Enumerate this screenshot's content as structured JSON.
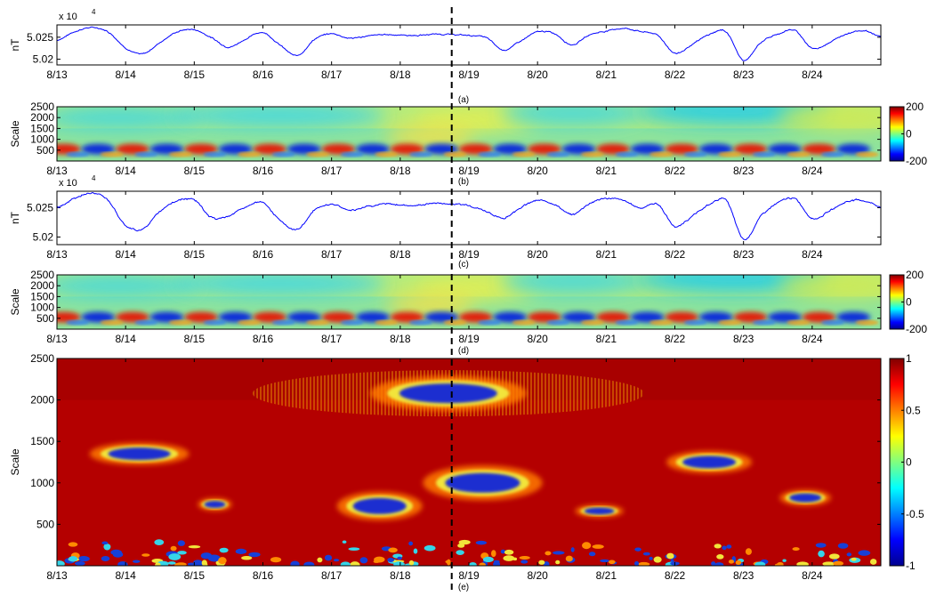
{
  "figure": {
    "dashed_line_date": "8/18 18:00"
  },
  "chart_data": [
    {
      "id": "a",
      "type": "line",
      "panel_label": "(a)",
      "ylabel": "nT",
      "y_multiplier": "x 10",
      "y_exponent": "4",
      "yticks": [
        "5.02",
        "5.025"
      ],
      "ylim": [
        5.0187,
        5.0278
      ],
      "xticks": [
        "8/13",
        "8/14",
        "8/15",
        "8/16",
        "8/17",
        "8/18",
        "8/19",
        "8/20",
        "8/21",
        "8/22",
        "8/23",
        "8/24"
      ],
      "series": [
        {
          "color": "#0000ff",
          "x": [
            "8/13 00:00",
            "8/13 06:00",
            "8/13 12:00",
            "8/13 18:00",
            "8/14 00:00",
            "8/14 06:00",
            "8/14 12:00",
            "8/14 18:00",
            "8/15 00:00",
            "8/15 06:00",
            "8/15 12:00",
            "8/15 18:00",
            "8/16 00:00",
            "8/16 06:00",
            "8/16 12:00",
            "8/16 18:00",
            "8/17 00:00",
            "8/17 06:00",
            "8/17 12:00",
            "8/17 18:00",
            "8/18 00:00",
            "8/18 06:00",
            "8/18 12:00",
            "8/18 18:00",
            "8/19 00:00",
            "8/19 06:00",
            "8/19 12:00",
            "8/19 18:00",
            "8/20 00:00",
            "8/20 06:00",
            "8/20 12:00",
            "8/20 18:00",
            "8/21 00:00",
            "8/21 06:00",
            "8/21 12:00",
            "8/21 18:00",
            "8/22 00:00",
            "8/22 06:00",
            "8/22 12:00",
            "8/22 18:00",
            "8/23 00:00",
            "8/23 06:00",
            "8/23 12:00",
            "8/23 18:00",
            "8/24 00:00",
            "8/24 06:00",
            "8/24 12:00",
            "8/24 18:00",
            "8/25 00:00"
          ],
          "y": [
            5.0243,
            5.0262,
            5.0272,
            5.0262,
            5.0226,
            5.0212,
            5.0238,
            5.0262,
            5.0267,
            5.0249,
            5.0228,
            5.0246,
            5.0261,
            5.0232,
            5.0208,
            5.0245,
            5.0258,
            5.0248,
            5.0252,
            5.0256,
            5.0255,
            5.0254,
            5.0257,
            5.0256,
            5.0254,
            5.0249,
            5.0221,
            5.0241,
            5.0262,
            5.0258,
            5.0233,
            5.0255,
            5.0264,
            5.027,
            5.0263,
            5.0254,
            5.0214,
            5.0233,
            5.0256,
            5.0262,
            5.0197,
            5.0238,
            5.0257,
            5.0265,
            5.0225,
            5.0238,
            5.0258,
            5.0265,
            5.0252
          ]
        }
      ]
    },
    {
      "id": "b",
      "type": "heatmap",
      "panel_label": "(b)",
      "ylabel": "Scale",
      "yticks": [
        "500",
        "1000",
        "1500",
        "2000",
        "2500"
      ],
      "ylim": [
        0,
        2500
      ],
      "xticks": [
        "8/13",
        "8/14",
        "8/15",
        "8/16",
        "8/17",
        "8/18",
        "8/19",
        "8/20",
        "8/21",
        "8/22",
        "8/23",
        "8/24"
      ],
      "colorbar": {
        "ticks": [
          "200",
          "0",
          "-200"
        ],
        "range": [
          -200,
          200
        ]
      }
    },
    {
      "id": "c",
      "type": "line",
      "panel_label": "(c)",
      "ylabel": "nT",
      "y_multiplier": "x 10",
      "y_exponent": "4",
      "yticks": [
        "5.02",
        "5.025"
      ],
      "ylim": [
        5.0187,
        5.0278
      ],
      "xticks": [
        "8/13",
        "8/14",
        "8/15",
        "8/16",
        "8/17",
        "8/18",
        "8/19",
        "8/20",
        "8/21",
        "8/22",
        "8/23",
        "8/24"
      ],
      "series": [
        {
          "color": "#0000ff",
          "x": [
            "8/13 00:00",
            "8/13 06:00",
            "8/13 12:00",
            "8/13 18:00",
            "8/14 00:00",
            "8/14 06:00",
            "8/14 12:00",
            "8/14 18:00",
            "8/15 00:00",
            "8/15 06:00",
            "8/15 12:00",
            "8/15 18:00",
            "8/16 00:00",
            "8/16 06:00",
            "8/16 12:00",
            "8/16 18:00",
            "8/17 00:00",
            "8/17 06:00",
            "8/17 12:00",
            "8/17 18:00",
            "8/18 00:00",
            "8/18 06:00",
            "8/18 12:00",
            "8/18 18:00",
            "8/19 00:00",
            "8/19 06:00",
            "8/19 12:00",
            "8/19 18:00",
            "8/20 00:00",
            "8/20 06:00",
            "8/20 12:00",
            "8/20 18:00",
            "8/21 00:00",
            "8/21 06:00",
            "8/21 12:00",
            "8/21 18:00",
            "8/22 00:00",
            "8/22 06:00",
            "8/22 12:00",
            "8/22 18:00",
            "8/23 00:00",
            "8/23 06:00",
            "8/23 12:00",
            "8/23 18:00",
            "8/24 00:00",
            "8/24 06:00",
            "8/24 12:00",
            "8/24 18:00",
            "8/25 00:00"
          ],
          "y": [
            5.025,
            5.0265,
            5.0275,
            5.0262,
            5.022,
            5.0214,
            5.0244,
            5.0262,
            5.0263,
            5.0233,
            5.0236,
            5.0251,
            5.0258,
            5.0228,
            5.0212,
            5.0246,
            5.0256,
            5.0246,
            5.0252,
            5.0256,
            5.0255,
            5.0254,
            5.0258,
            5.0256,
            5.0254,
            5.0244,
            5.0232,
            5.025,
            5.0262,
            5.0256,
            5.0238,
            5.0257,
            5.0266,
            5.0262,
            5.025,
            5.0256,
            5.0218,
            5.0235,
            5.0255,
            5.0262,
            5.0196,
            5.0235,
            5.0258,
            5.0265,
            5.0232,
            5.0244,
            5.026,
            5.0262,
            5.0252
          ]
        }
      ]
    },
    {
      "id": "d",
      "type": "heatmap",
      "panel_label": "(d)",
      "ylabel": "Scale",
      "yticks": [
        "500",
        "1000",
        "1500",
        "2000",
        "2500"
      ],
      "ylim": [
        0,
        2500
      ],
      "xticks": [
        "8/13",
        "8/14",
        "8/15",
        "8/16",
        "8/17",
        "8/18",
        "8/19",
        "8/20",
        "8/21",
        "8/22",
        "8/23",
        "8/24"
      ],
      "colorbar": {
        "ticks": [
          "200",
          "0",
          "-200"
        ],
        "range": [
          -200,
          200
        ]
      }
    },
    {
      "id": "e",
      "type": "heatmap",
      "panel_label": "(e)",
      "ylabel": "Scale",
      "yticks": [
        "500",
        "1000",
        "1500",
        "2000",
        "2500"
      ],
      "ylim": [
        0,
        2500
      ],
      "xticks": [
        "8/13",
        "8/14",
        "8/15",
        "8/16",
        "8/17",
        "8/18",
        "8/19",
        "8/20",
        "8/21",
        "8/22",
        "8/23",
        "8/24"
      ],
      "colorbar": {
        "ticks": [
          "1",
          "0.5",
          "0",
          "-0.5",
          "-1"
        ],
        "range": [
          -1,
          1
        ]
      }
    }
  ]
}
